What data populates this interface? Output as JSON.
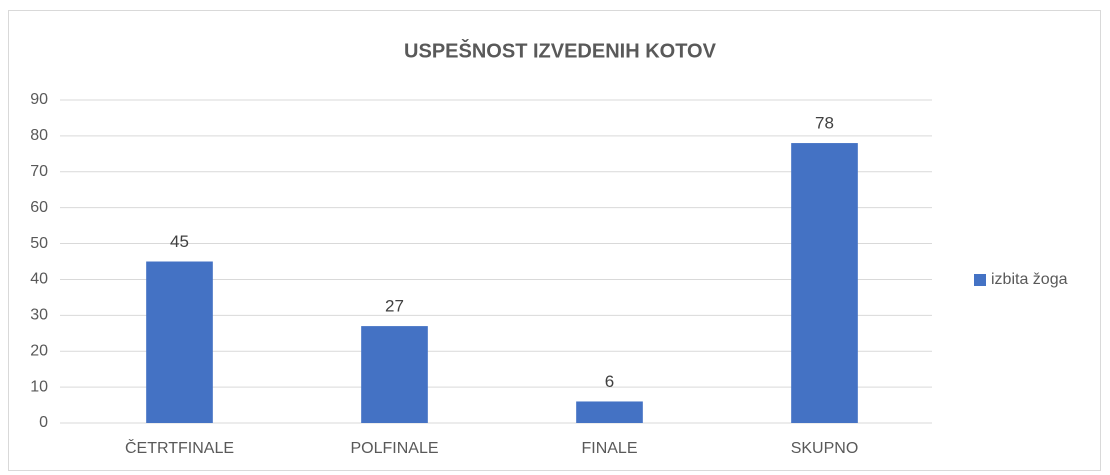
{
  "chart_data": {
    "type": "bar",
    "title": "USPEŠNOST IZVEDENIH KOTOV",
    "categories": [
      "ČETRTFINALE",
      "POLFINALE",
      "FINALE",
      "SKUPNO"
    ],
    "series": [
      {
        "name": "izbita žoga",
        "color": "#4472c4",
        "values": [
          45,
          27,
          6,
          78
        ]
      }
    ],
    "ylim": [
      0,
      90
    ],
    "yticks": [
      0,
      10,
      20,
      30,
      40,
      50,
      60,
      70,
      80,
      90
    ],
    "grid": true,
    "legend": "right"
  }
}
